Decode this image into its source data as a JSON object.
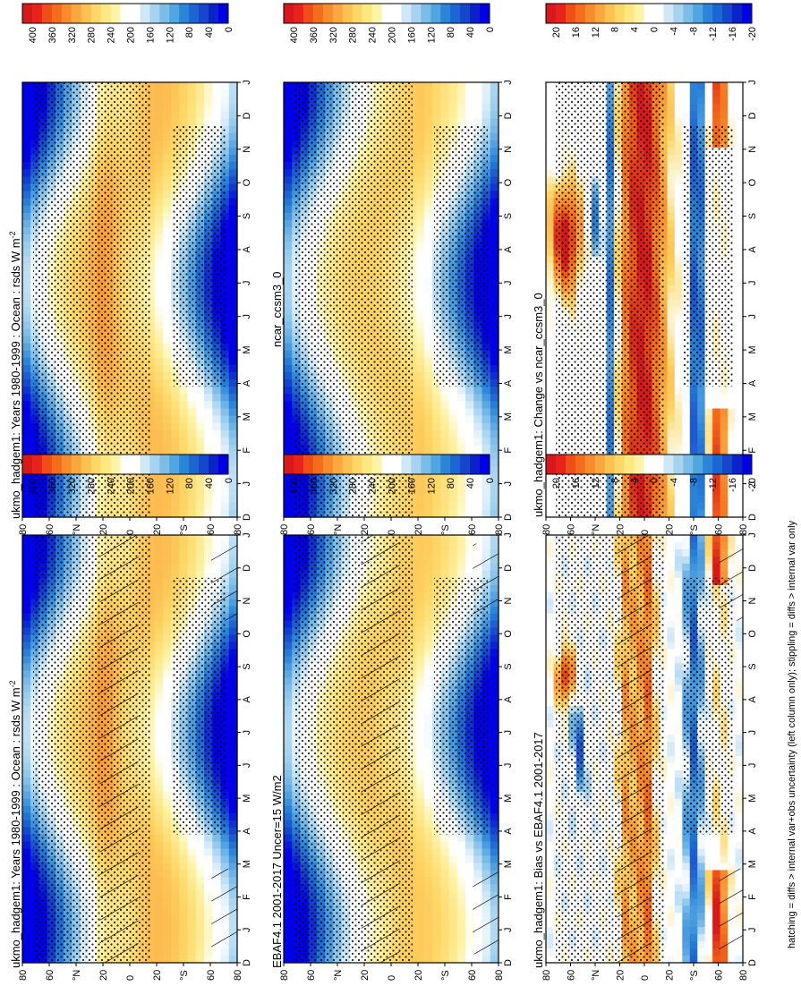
{
  "figure": {
    "footnote": "hatching = diffs > internal var+obs uncertainty (left column only); stippling = diffs > internal var only"
  },
  "months": [
    "D",
    "J",
    "F",
    "M",
    "A",
    "M",
    "J",
    "J",
    "A",
    "S",
    "O",
    "N",
    "D",
    "J"
  ],
  "lat_ticks": [
    "80",
    "60",
    "°N",
    "20",
    "0",
    "20",
    "°S",
    "60",
    "80"
  ],
  "colorbars": {
    "absolute": {
      "labels": [
        "400",
        "360",
        "320",
        "280",
        "240",
        "200",
        "160",
        "120",
        "80",
        "40",
        "0"
      ],
      "colors": [
        "#d7191c",
        "#e8231b",
        "#f14d16",
        "#f46d1a",
        "#f88b2c",
        "#fba73f",
        "#fdc152",
        "#fed766",
        "#ffe87f",
        "#fff3a6",
        "#ffffff",
        "#ffffff",
        "#cfe8f7",
        "#a7d3f0",
        "#7cbde8",
        "#4fa6e0",
        "#2b86d8",
        "#1b66d2",
        "#1546cc",
        "#0a23c8",
        "#0000e6"
      ]
    },
    "difference": {
      "labels": [
        "20",
        "16",
        "12",
        "8",
        "4",
        "0",
        "-4",
        "-8",
        "-12",
        "-16",
        "-20"
      ],
      "colors": [
        "#d7191c",
        "#e8231b",
        "#f14d16",
        "#f46d1a",
        "#f88b2c",
        "#fba73f",
        "#fdc152",
        "#fed766",
        "#ffe87f",
        "#fff3a6",
        "#ffffff",
        "#ffffff",
        "#cfe8f7",
        "#a7d3f0",
        "#7cbde8",
        "#4fa6e0",
        "#2b86d8",
        "#1b66d2",
        "#1546cc",
        "#0a23c8",
        "#0000e6"
      ]
    }
  },
  "chart_data": [
    {
      "id": "p1",
      "type": "heatmap",
      "title": "ukmo_hadgem1: Years 1980-1999 : Ocean : rsds W m",
      "title_sup": "-2",
      "x": "month",
      "y": "latitude",
      "ylim": [
        -90,
        90
      ],
      "colorbar": "absolute",
      "hatched": true,
      "overlay": "stippling+hatching"
    },
    {
      "id": "p2",
      "type": "heatmap",
      "title": "ukmo_hadgem1: Years 1980-1999 : Ocean : rsds W m",
      "title_sup": "-2",
      "x": "month",
      "y": "latitude",
      "ylim": [
        -90,
        90
      ],
      "colorbar": "absolute",
      "hatched": false,
      "overlay": "stippling"
    },
    {
      "id": "p3",
      "type": "heatmap",
      "title": "EBAF4.1 2001-2017 Uncer=15 W/m2",
      "title_sup": "",
      "x": "month",
      "y": "latitude",
      "ylim": [
        -90,
        90
      ],
      "colorbar": "absolute",
      "hatched": true,
      "overlay": "stippling+hatching"
    },
    {
      "id": "p4",
      "type": "heatmap",
      "title": "ncar_ccsm3_0",
      "title_sup": "",
      "x": "month",
      "y": "latitude",
      "ylim": [
        -90,
        90
      ],
      "colorbar": "absolute",
      "hatched": false,
      "overlay": "stippling"
    },
    {
      "id": "p5",
      "type": "heatmap",
      "title": "ukmo_hadgem1: Bias vs EBAF4.1 2001-2017",
      "title_sup": "",
      "x": "month",
      "y": "latitude",
      "ylim": [
        -90,
        90
      ],
      "colorbar": "difference",
      "hatched": true,
      "overlay": "stippling+hatching"
    },
    {
      "id": "p6",
      "type": "heatmap",
      "title": "ukmo_hadgem1: Change vs ncar_ccsm3_0",
      "title_sup": "",
      "x": "month",
      "y": "latitude",
      "ylim": [
        -90,
        90
      ],
      "colorbar": "difference",
      "hatched": false,
      "overlay": "stippling"
    }
  ]
}
